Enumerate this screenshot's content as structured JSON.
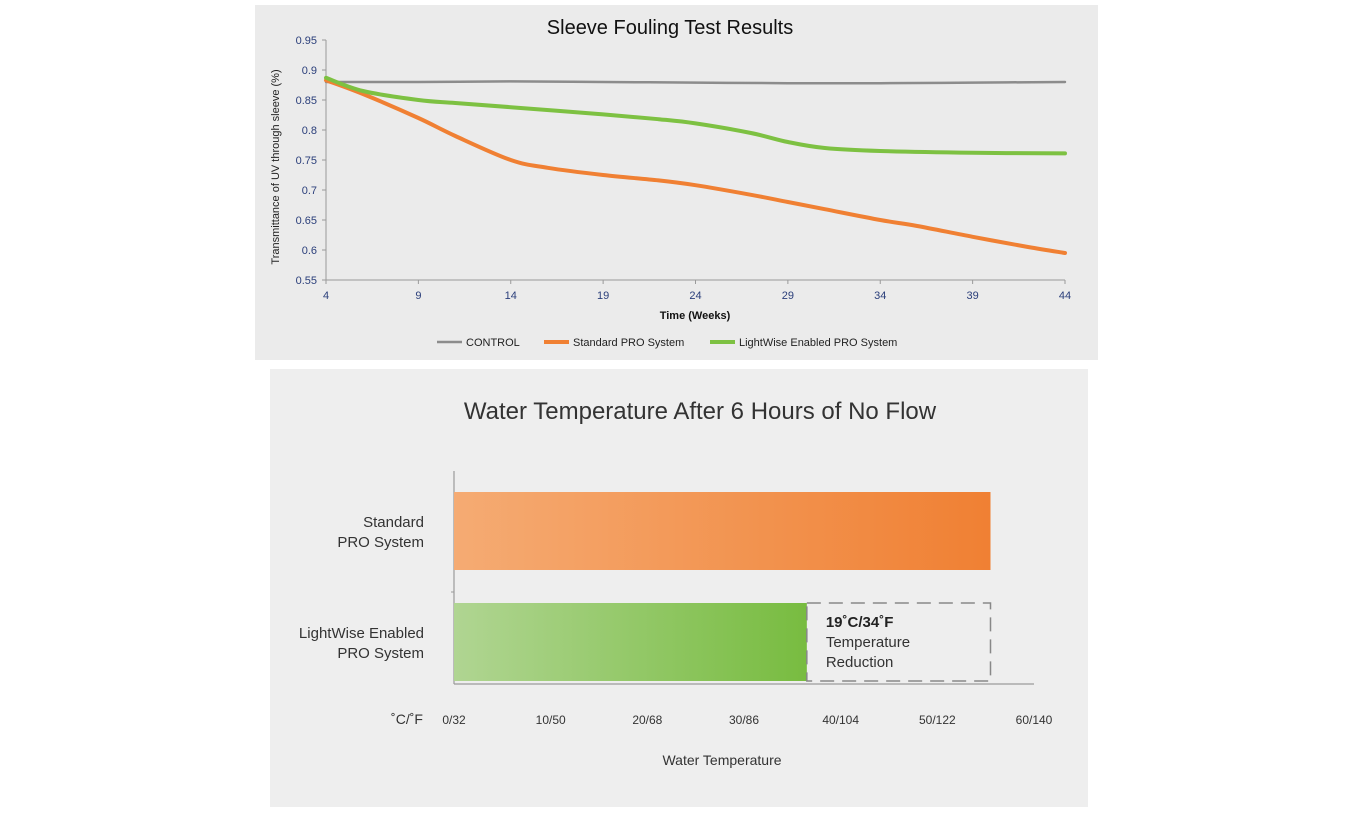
{
  "colors": {
    "control": "#8c8c8c",
    "standard": "#f08033",
    "lightwise": "#7dc142",
    "axis": "#9a9a9a",
    "tick_text": "#2a3e7a",
    "text": "#333333"
  },
  "chart_data": [
    {
      "type": "line",
      "title": "Sleeve Fouling Test Results",
      "xlabel": "Time (Weeks)",
      "ylabel": "Transmittance of UV through sleeve (%)",
      "xlim": [
        4,
        44
      ],
      "ylim": [
        0.55,
        0.95
      ],
      "x_ticks": [
        4,
        9,
        14,
        19,
        24,
        29,
        34,
        39,
        44
      ],
      "x_tick_labels": [
        "4",
        "9",
        "14",
        "19",
        "24",
        "29",
        "34",
        "39",
        "44"
      ],
      "y_ticks": [
        0.55,
        0.6,
        0.65,
        0.7,
        0.75,
        0.8,
        0.85,
        0.9,
        0.95
      ],
      "y_tick_labels": [
        "0.55",
        "0.6",
        "0.65",
        "0.7",
        "0.75",
        "0.8",
        "0.85",
        "0.9",
        "0.95"
      ],
      "grid": false,
      "legend": "bottom",
      "series": [
        {
          "name": "CONTROL",
          "x": [
            4,
            9,
            14,
            19,
            24,
            29,
            34,
            39,
            44
          ],
          "values": [
            0.88,
            0.88,
            0.881,
            0.88,
            0.879,
            0.878,
            0.878,
            0.879,
            0.88
          ]
        },
        {
          "name": "Standard PRO System",
          "x": [
            4,
            6,
            9,
            11,
            14,
            16,
            19,
            22,
            24,
            27,
            29,
            31,
            34,
            36,
            39,
            42,
            44
          ],
          "values": [
            0.883,
            0.86,
            0.82,
            0.79,
            0.75,
            0.737,
            0.725,
            0.716,
            0.708,
            0.692,
            0.68,
            0.668,
            0.65,
            0.64,
            0.622,
            0.605,
            0.595
          ]
        },
        {
          "name": "LightWise Enabled PRO System",
          "x": [
            4,
            6,
            9,
            11,
            14,
            19,
            22,
            24,
            27,
            29,
            31,
            34,
            39,
            44
          ],
          "values": [
            0.887,
            0.865,
            0.85,
            0.845,
            0.838,
            0.826,
            0.818,
            0.811,
            0.795,
            0.78,
            0.77,
            0.765,
            0.762,
            0.761
          ]
        }
      ]
    },
    {
      "type": "bar",
      "orientation": "horizontal",
      "title": "Water Temperature After 6 Hours of No Flow",
      "xlabel": "Water Temperature",
      "unit_label": "˚C/˚F",
      "xlim": [
        0,
        60
      ],
      "x_ticks": [
        0,
        10,
        20,
        30,
        40,
        50,
        60
      ],
      "x_tick_labels": [
        "0/32",
        "10/50",
        "20/68",
        "30/86",
        "40/104",
        "50/122",
        "60/140"
      ],
      "categories": [
        [
          "Standard",
          "PRO System"
        ],
        [
          "LightWise Enabled",
          "PRO System"
        ]
      ],
      "values": [
        55.5,
        36.5
      ],
      "annotation": {
        "value": "19˚C/34˚F",
        "lines": [
          "Temperature",
          "Reduction"
        ]
      }
    }
  ]
}
